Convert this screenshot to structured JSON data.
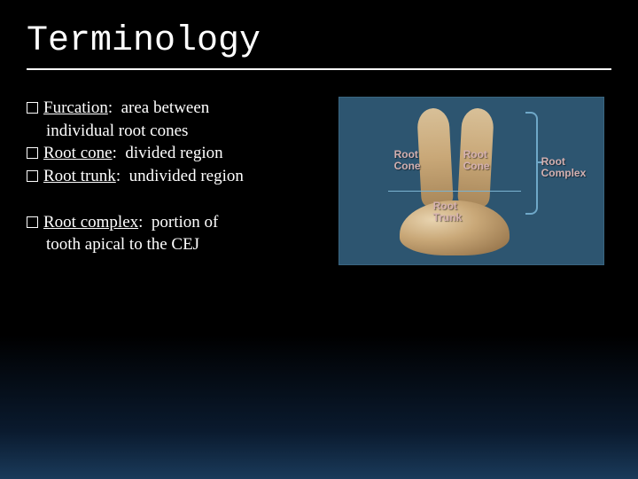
{
  "title": "Terminology",
  "terms": [
    {
      "name": "Furcation",
      "def": "area between individual root cones"
    },
    {
      "name": "Root cone",
      "def": "divided region"
    },
    {
      "name": "Root trunk",
      "def": "undivided region"
    },
    {
      "name": "Root complex",
      "def": "portion of tooth apical to the CEJ"
    }
  ],
  "diagram": {
    "labels": {
      "root_cone_left": "Root Cone",
      "root_cone_right": "Root Cone",
      "root_trunk": "Root Trunk",
      "root_complex": "Root Complex"
    },
    "colors": {
      "background": "#2d5570",
      "tooth_light": "#e8d4b0",
      "tooth_mid": "#c9a878",
      "tooth_dark": "#8a6840",
      "label_color": "#d4b0b0",
      "line_color": "#6fa8c8"
    }
  },
  "style": {
    "title_font": "Courier New",
    "body_font": "Georgia",
    "title_fontsize": 40,
    "body_fontsize": 19,
    "text_color": "#ffffff",
    "bg_gradient_top": "#000000",
    "bg_gradient_bottom": "#1a3a5a"
  }
}
